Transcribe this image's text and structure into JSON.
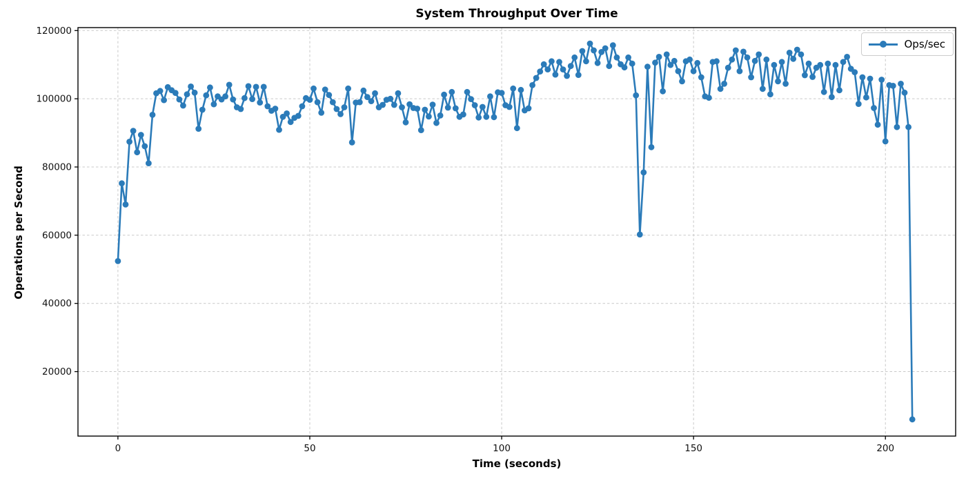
{
  "figure": {
    "title": "System Throughput Over Time",
    "background": "#ffffff"
  },
  "legend": {
    "label": "Ops/sec",
    "position": "upper right"
  },
  "chart_data": {
    "type": "line",
    "title": "System Throughput Over Time",
    "xlabel": "Time (seconds)",
    "ylabel": "Operations per Second",
    "grid": true,
    "grid_color": "#c9c9c9",
    "line_color": "#2b7bb9",
    "marker": "circle",
    "x_ticks": [
      0,
      50,
      100,
      150,
      200
    ],
    "y_ticks": [
      20000,
      40000,
      60000,
      80000,
      100000,
      120000
    ],
    "xlim": [
      -10.41,
      218.3
    ],
    "ylim": [
      1094,
      120870
    ],
    "legend_entries": [
      "Ops/sec"
    ],
    "series": [
      {
        "name": "Ops/sec",
        "x_start": 0,
        "x_step": 1,
        "values": [
          52400,
          75200,
          69000,
          87400,
          90600,
          84300,
          89400,
          86100,
          81100,
          95300,
          101600,
          102300,
          99600,
          103400,
          102500,
          101700,
          99800,
          98000,
          101300,
          103600,
          101800,
          91200,
          96800,
          101000,
          103300,
          98400,
          100700,
          99800,
          100700,
          104100,
          99800,
          97500,
          97000,
          100200,
          103700,
          99900,
          103500,
          98900,
          103500,
          97800,
          96500,
          97100,
          90900,
          94700,
          95700,
          93200,
          94400,
          95000,
          97800,
          100200,
          99700,
          103000,
          99000,
          95900,
          102700,
          101100,
          99000,
          97000,
          95500,
          97500,
          103000,
          87200,
          98900,
          99000,
          102400,
          100500,
          99300,
          101600,
          97500,
          98200,
          99700,
          100000,
          98200,
          101600,
          97500,
          93100,
          98400,
          97300,
          97100,
          90800,
          96800,
          94800,
          98300,
          92900,
          95100,
          101200,
          97400,
          102000,
          97200,
          94700,
          95400,
          102000,
          99900,
          98100,
          94500,
          97600,
          94700,
          100700,
          94600,
          101900,
          101700,
          98100,
          97600,
          103000,
          91400,
          102600,
          96600,
          97200,
          104000,
          106100,
          108000,
          110100,
          108600,
          111000,
          107100,
          110800,
          108600,
          106700,
          109600,
          112100,
          107000,
          114000,
          111000,
          116200,
          114200,
          110500,
          113700,
          114800,
          109600,
          115700,
          112100,
          110100,
          109200,
          112100,
          110300,
          101000,
          60200,
          78400,
          109400,
          85800,
          110600,
          112300,
          102200,
          113000,
          109900,
          111100,
          108100,
          105100,
          111000,
          111500,
          108100,
          110500,
          106300,
          100700,
          100300,
          110800,
          111000,
          102900,
          104400,
          109100,
          111500,
          114200,
          108100,
          113800,
          112100,
          106300,
          111100,
          113000,
          102900,
          111500,
          101300,
          109900,
          105100,
          110800,
          104400,
          113500,
          111700,
          114400,
          113000,
          106900,
          110300,
          106400,
          109100,
          109900,
          102000,
          110300,
          100500,
          109900,
          102500,
          110800,
          112300,
          108800,
          107800,
          98500,
          106300,
          100400,
          105900,
          97300,
          92400,
          105600,
          87500,
          104000,
          103800,
          91700,
          104400,
          101800,
          91700,
          6000
        ]
      }
    ]
  }
}
